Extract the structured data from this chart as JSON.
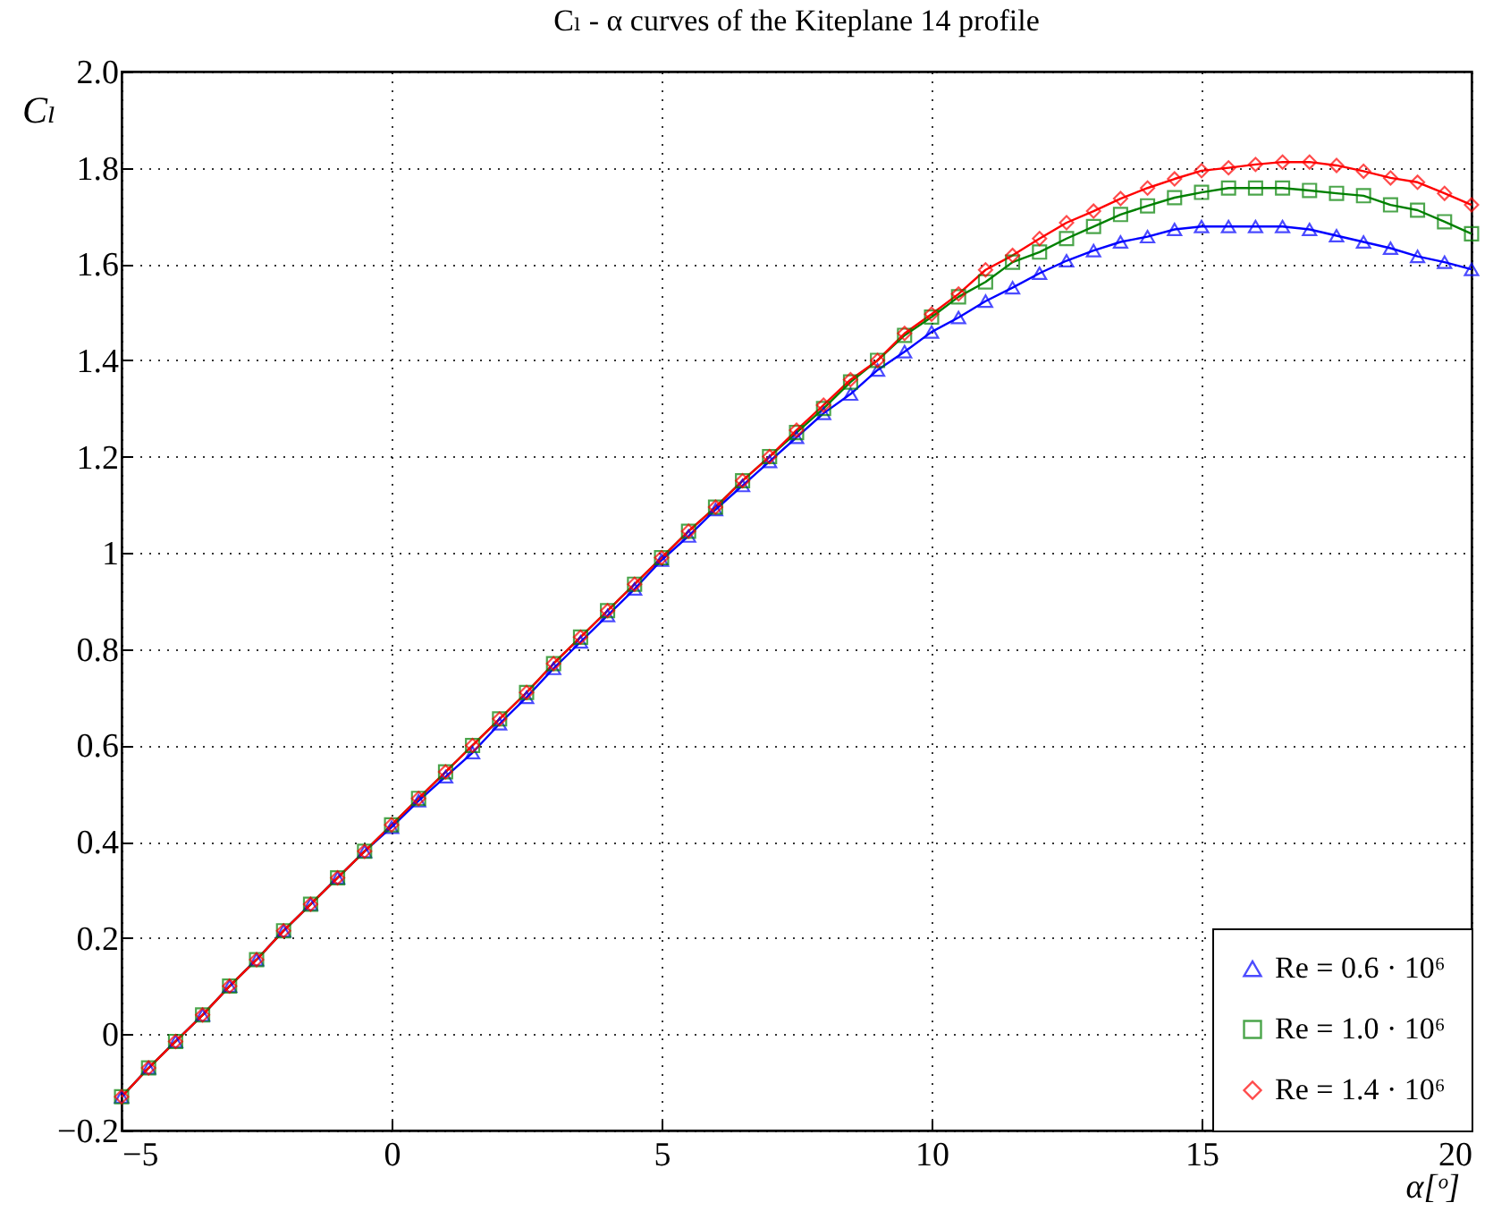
{
  "chart_data": {
    "type": "line",
    "title": "Cₗ - α curves of the Kiteplane 14 profile",
    "xlabel": "α[ᵒ]",
    "ylabel": "Cₗ",
    "x": [
      -5,
      -4.5,
      -4,
      -3.5,
      -3,
      -2.5,
      -2,
      -1.5,
      -1,
      -0.5,
      0,
      0.5,
      1,
      1.5,
      2,
      2.5,
      3,
      3.5,
      4,
      4.5,
      5,
      5.5,
      6,
      6.5,
      7,
      7.5,
      8,
      8.5,
      9,
      9.5,
      10,
      10.5,
      11,
      11.5,
      12,
      12.5,
      13,
      13.5,
      14,
      14.5,
      15,
      15.5,
      16,
      16.5,
      17,
      17.5,
      18,
      18.5,
      19,
      19.5,
      20
    ],
    "series": [
      {
        "name": "Re = 0.6 · 10⁶",
        "color": "#0000ff",
        "marker": "triangle",
        "values": [
          -0.13,
          -0.07,
          -0.015,
          0.04,
          0.1,
          0.155,
          0.215,
          0.27,
          0.325,
          0.38,
          0.43,
          0.485,
          0.535,
          0.585,
          0.645,
          0.7,
          0.76,
          0.815,
          0.87,
          0.925,
          0.985,
          1.035,
          1.09,
          1.14,
          1.19,
          1.24,
          1.29,
          1.33,
          1.38,
          1.418,
          1.459,
          1.489,
          1.523,
          1.551,
          1.581,
          1.607,
          1.628,
          1.646,
          1.657,
          1.672,
          1.678,
          1.678,
          1.678,
          1.678,
          1.672,
          1.659,
          1.646,
          1.633,
          1.616,
          1.604,
          1.589
        ]
      },
      {
        "name": "Re = 1.0 · 10⁶",
        "color": "#008000",
        "marker": "square",
        "values": [
          -0.13,
          -0.07,
          -0.015,
          0.04,
          0.1,
          0.155,
          0.215,
          0.27,
          0.325,
          0.38,
          0.435,
          0.49,
          0.545,
          0.6,
          0.655,
          0.71,
          0.77,
          0.825,
          0.88,
          0.935,
          0.99,
          1.045,
          1.095,
          1.15,
          1.2,
          1.25,
          1.3,
          1.355,
          1.4,
          1.452,
          1.49,
          1.532,
          1.563,
          1.604,
          1.625,
          1.653,
          1.678,
          1.703,
          1.721,
          1.738,
          1.749,
          1.758,
          1.758,
          1.758,
          1.753,
          1.747,
          1.742,
          1.723,
          1.712,
          1.688,
          1.663
        ]
      },
      {
        "name": "Re = 1.4 · 10⁶",
        "color": "#ff0000",
        "marker": "diamond",
        "values": [
          -0.13,
          -0.07,
          -0.015,
          0.04,
          0.1,
          0.155,
          0.215,
          0.27,
          0.325,
          0.38,
          0.435,
          0.49,
          0.545,
          0.6,
          0.655,
          0.71,
          0.77,
          0.825,
          0.88,
          0.935,
          0.99,
          1.045,
          1.095,
          1.15,
          1.2,
          1.255,
          1.307,
          1.36,
          1.4,
          1.456,
          1.496,
          1.538,
          1.588,
          1.618,
          1.653,
          1.686,
          1.71,
          1.736,
          1.758,
          1.777,
          1.794,
          1.8,
          1.807,
          1.812,
          1.812,
          1.805,
          1.793,
          1.779,
          1.77,
          1.747,
          1.723
        ]
      }
    ],
    "xlim": [
      -5,
      20
    ],
    "xticks": [
      {
        "value": -5,
        "label": "−5"
      },
      0,
      5,
      10,
      15,
      20
    ],
    "ylim": [
      -0.2,
      2.0
    ],
    "yticks": [
      {
        "value": -0.2,
        "label": "−0.2"
      },
      0,
      0.2,
      0.4,
      0.6,
      0.8,
      1,
      1.2,
      1.4,
      1.6,
      1.8,
      {
        "value": 2.0,
        "label": "2.0"
      }
    ],
    "grid": true,
    "legend": "bottom right",
    "line_style": "solid"
  }
}
